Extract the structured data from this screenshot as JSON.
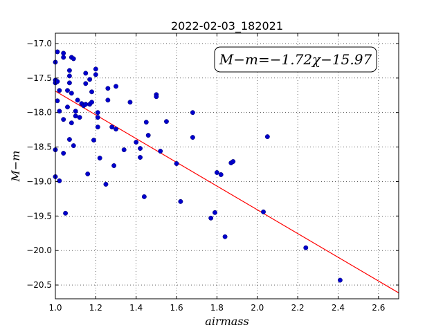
{
  "chart_data": {
    "type": "scatter",
    "title": "2022-02-03_182021",
    "xlabel": "airmass",
    "ylabel": "M−m",
    "xlim": [
      1.0,
      2.7
    ],
    "ylim": [
      -20.7,
      -16.85
    ],
    "y_inverted": true,
    "grid": true,
    "grid_style": "dotted",
    "x_ticks": [
      1.0,
      1.2,
      1.4,
      1.6,
      1.8,
      2.0,
      2.2,
      2.4,
      2.6
    ],
    "x_tick_labels": [
      "1.0",
      "1.2",
      "1.4",
      "1.6",
      "1.8",
      "2.0",
      "2.2",
      "2.4",
      "2.6"
    ],
    "y_ticks": [
      -17.0,
      -17.5,
      -18.0,
      -18.5,
      -19.0,
      -19.5,
      -20.0,
      -20.5
    ],
    "y_tick_labels": [
      "−17.0",
      "−17.5",
      "−18.0",
      "−18.5",
      "−19.0",
      "−19.5",
      "−20.0",
      "−20.5"
    ],
    "annotation": "M−m=−1.72χ−15.97",
    "fit": {
      "slope": -1.72,
      "intercept": -15.97,
      "color": "#ff0000"
    },
    "point_color": "#0000cc",
    "series": [
      {
        "x": [
          1.0,
          1.0,
          1.0,
          1.0,
          1.0,
          1.01,
          1.01,
          1.01,
          1.02,
          1.02,
          1.02,
          1.04,
          1.04,
          1.04,
          1.04,
          1.05,
          1.06,
          1.06,
          1.07,
          1.07,
          1.07,
          1.07,
          1.08,
          1.08,
          1.08,
          1.09,
          1.09,
          1.1,
          1.1,
          1.11,
          1.12,
          1.13,
          1.14,
          1.15,
          1.15,
          1.15,
          1.16,
          1.17,
          1.17,
          1.18,
          1.18,
          1.19,
          1.2,
          1.2,
          1.21,
          1.21,
          1.21,
          1.22,
          1.25,
          1.26,
          1.26,
          1.28,
          1.29,
          1.3,
          1.3,
          1.34,
          1.37,
          1.4,
          1.42,
          1.42,
          1.44,
          1.45,
          1.46,
          1.5,
          1.5,
          1.52,
          1.55,
          1.6,
          1.62,
          1.68,
          1.68,
          1.77,
          1.79,
          1.8,
          1.82,
          1.84,
          1.87,
          1.88,
          2.03,
          2.05,
          2.24,
          2.41
        ],
        "y": [
          -17.27,
          -17.53,
          -17.57,
          -18.54,
          -18.93,
          -17.12,
          -17.55,
          -17.83,
          -17.98,
          -18.99,
          -17.68,
          -17.14,
          -17.2,
          -18.1,
          -18.59,
          -19.46,
          -17.92,
          -17.68,
          -17.39,
          -17.47,
          -17.57,
          -18.39,
          -17.2,
          -17.72,
          -18.15,
          -17.22,
          -18.48,
          -17.98,
          -18.05,
          -17.82,
          -18.07,
          -17.87,
          -17.9,
          -17.43,
          -17.58,
          -17.88,
          -18.89,
          -17.52,
          -17.88,
          -17.7,
          -17.85,
          -18.4,
          -17.37,
          -17.45,
          -18.07,
          -18.21,
          -18.0,
          -18.66,
          -19.04,
          -17.65,
          -17.82,
          -18.21,
          -18.77,
          -17.62,
          -18.24,
          -18.54,
          -17.85,
          -18.43,
          -18.65,
          -18.52,
          -19.22,
          -18.14,
          -18.33,
          -17.74,
          -17.77,
          -18.56,
          -18.13,
          -18.74,
          -19.29,
          -18.0,
          -18.36,
          -19.53,
          -19.45,
          -18.87,
          -18.9,
          -19.8,
          -18.73,
          -18.71,
          -19.44,
          -18.35,
          -19.96,
          -20.43
        ]
      }
    ]
  }
}
